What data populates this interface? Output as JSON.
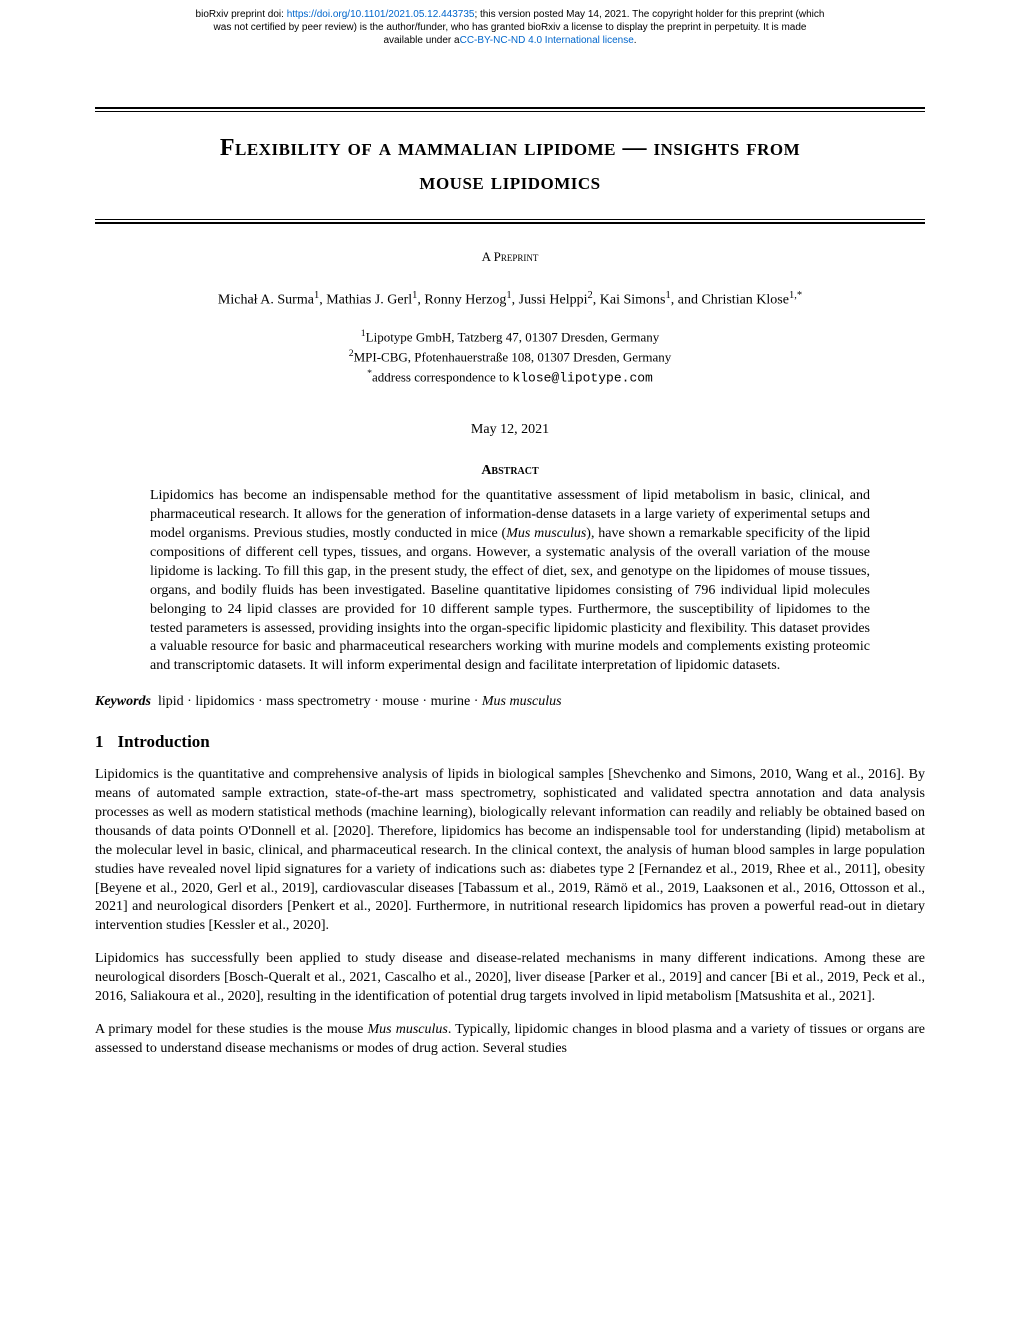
{
  "banner": {
    "line1_pre": "bioRxiv preprint doi: ",
    "doi_link": "https://doi.org/10.1101/2021.05.12.443735",
    "line1_post": "; this version posted May 14, 2021. The copyright holder for this preprint (which",
    "line2": "was not certified by peer review) is the author/funder, who has granted bioRxiv a license to display the preprint in perpetuity. It is made",
    "line3_pre": "available under a",
    "license_link": "CC-BY-NC-ND 4.0 International license",
    "line3_post": "."
  },
  "title_line1": "Flexibility of a mammalian lipidome — insights from",
  "title_line2": "mouse lipidomics",
  "preprint_label": "A Preprint",
  "authors_html": "Michał A. Surma<sup>1</sup>, Mathias J. Gerl<sup>1</sup>, Ronny Herzog<sup>1</sup>, Jussi Helppi<sup>2</sup>, Kai Simons<sup>1</sup>, and Christian Klose<sup>1,*</sup>",
  "affiliations": {
    "a1": "Lipotype GmbH, Tatzberg 47, 01307 Dresden, Germany",
    "a2": "MPI-CBG, Pfotenhauerstraße 108, 01307 Dresden, Germany",
    "corr_pre": "address correspondence to ",
    "corr_email": "klose@lipotype.com"
  },
  "date": "May 12, 2021",
  "abstract_heading": "Abstract",
  "abstract": "Lipidomics has become an indispensable method for the quantitative assessment of lipid metabolism in basic, clinical, and pharmaceutical research. It allows for the generation of information-dense datasets in a large variety of experimental setups and model organisms. Previous studies, mostly conducted in mice (Mus musculus), have shown a remarkable specificity of the lipid compositions of different cell types, tissues, and organs. However, a systematic analysis of the overall variation of the mouse lipidome is lacking. To fill this gap, in the present study, the effect of diet, sex, and genotype on the lipidomes of mouse tissues, organs, and bodily fluids has been investigated. Baseline quantitative lipidomes consisting of 796 individual lipid molecules belonging to 24 lipid classes are provided for 10 different sample types. Furthermore, the susceptibility of lipidomes to the tested parameters is assessed, providing insights into the organ-specific lipidomic plasticity and flexibility. This dataset provides a valuable resource for basic and pharmaceutical researchers working with murine models and complements existing proteomic and transcriptomic datasets. It will inform experimental design and facilitate interpretation of lipidomic datasets.",
  "keywords_label": "Keywords",
  "keywords_text": "  lipid · lipidomics · mass spectrometry · mouse · murine · Mus musculus",
  "section1_number": "1",
  "section1_title": "Introduction",
  "para1": "Lipidomics is the quantitative and comprehensive analysis of lipids in biological samples [Shevchenko and Simons, 2010, Wang et al., 2016]. By means of automated sample extraction, state-of-the-art mass spectrometry, sophisticated and validated spectra annotation and data analysis processes as well as modern statistical methods (machine learning), biologically relevant information can readily and reliably be obtained based on thousands of data points O'Donnell et al. [2020]. Therefore, lipidomics has become an indispensable tool for understanding (lipid) metabolism at the molecular level in basic, clinical, and pharmaceutical research. In the clinical context, the analysis of human blood samples in large population studies have revealed novel lipid signatures for a variety of indications such as: diabetes type 2 [Fernandez et al., 2019, Rhee et al., 2011], obesity [Beyene et al., 2020, Gerl et al., 2019], cardiovascular diseases [Tabassum et al., 2019, Rämö et al., 2019, Laaksonen et al., 2016, Ottosson et al., 2021] and neurological disorders [Penkert et al., 2020]. Furthermore, in nutritional research lipidomics has proven a powerful read-out in dietary intervention studies [Kessler et al., 2020].",
  "para2": "Lipidomics has successfully been applied to study disease and disease-related mechanisms in many different indications. Among these are neurological disorders [Bosch-Queralt et al., 2021, Cascalho et al., 2020], liver disease [Parker et al., 2019] and cancer [Bi et al., 2019, Peck et al., 2016, Saliakoura et al., 2020], resulting in the identification of potential drug targets involved in lipid metabolism [Matsushita et al., 2021].",
  "para3": "A primary model for these studies is the mouse Mus musculus. Typically, lipidomic changes in blood plasma and a variety of tissues or organs are assessed to understand disease mechanisms or modes of drug action. Several studies"
}
